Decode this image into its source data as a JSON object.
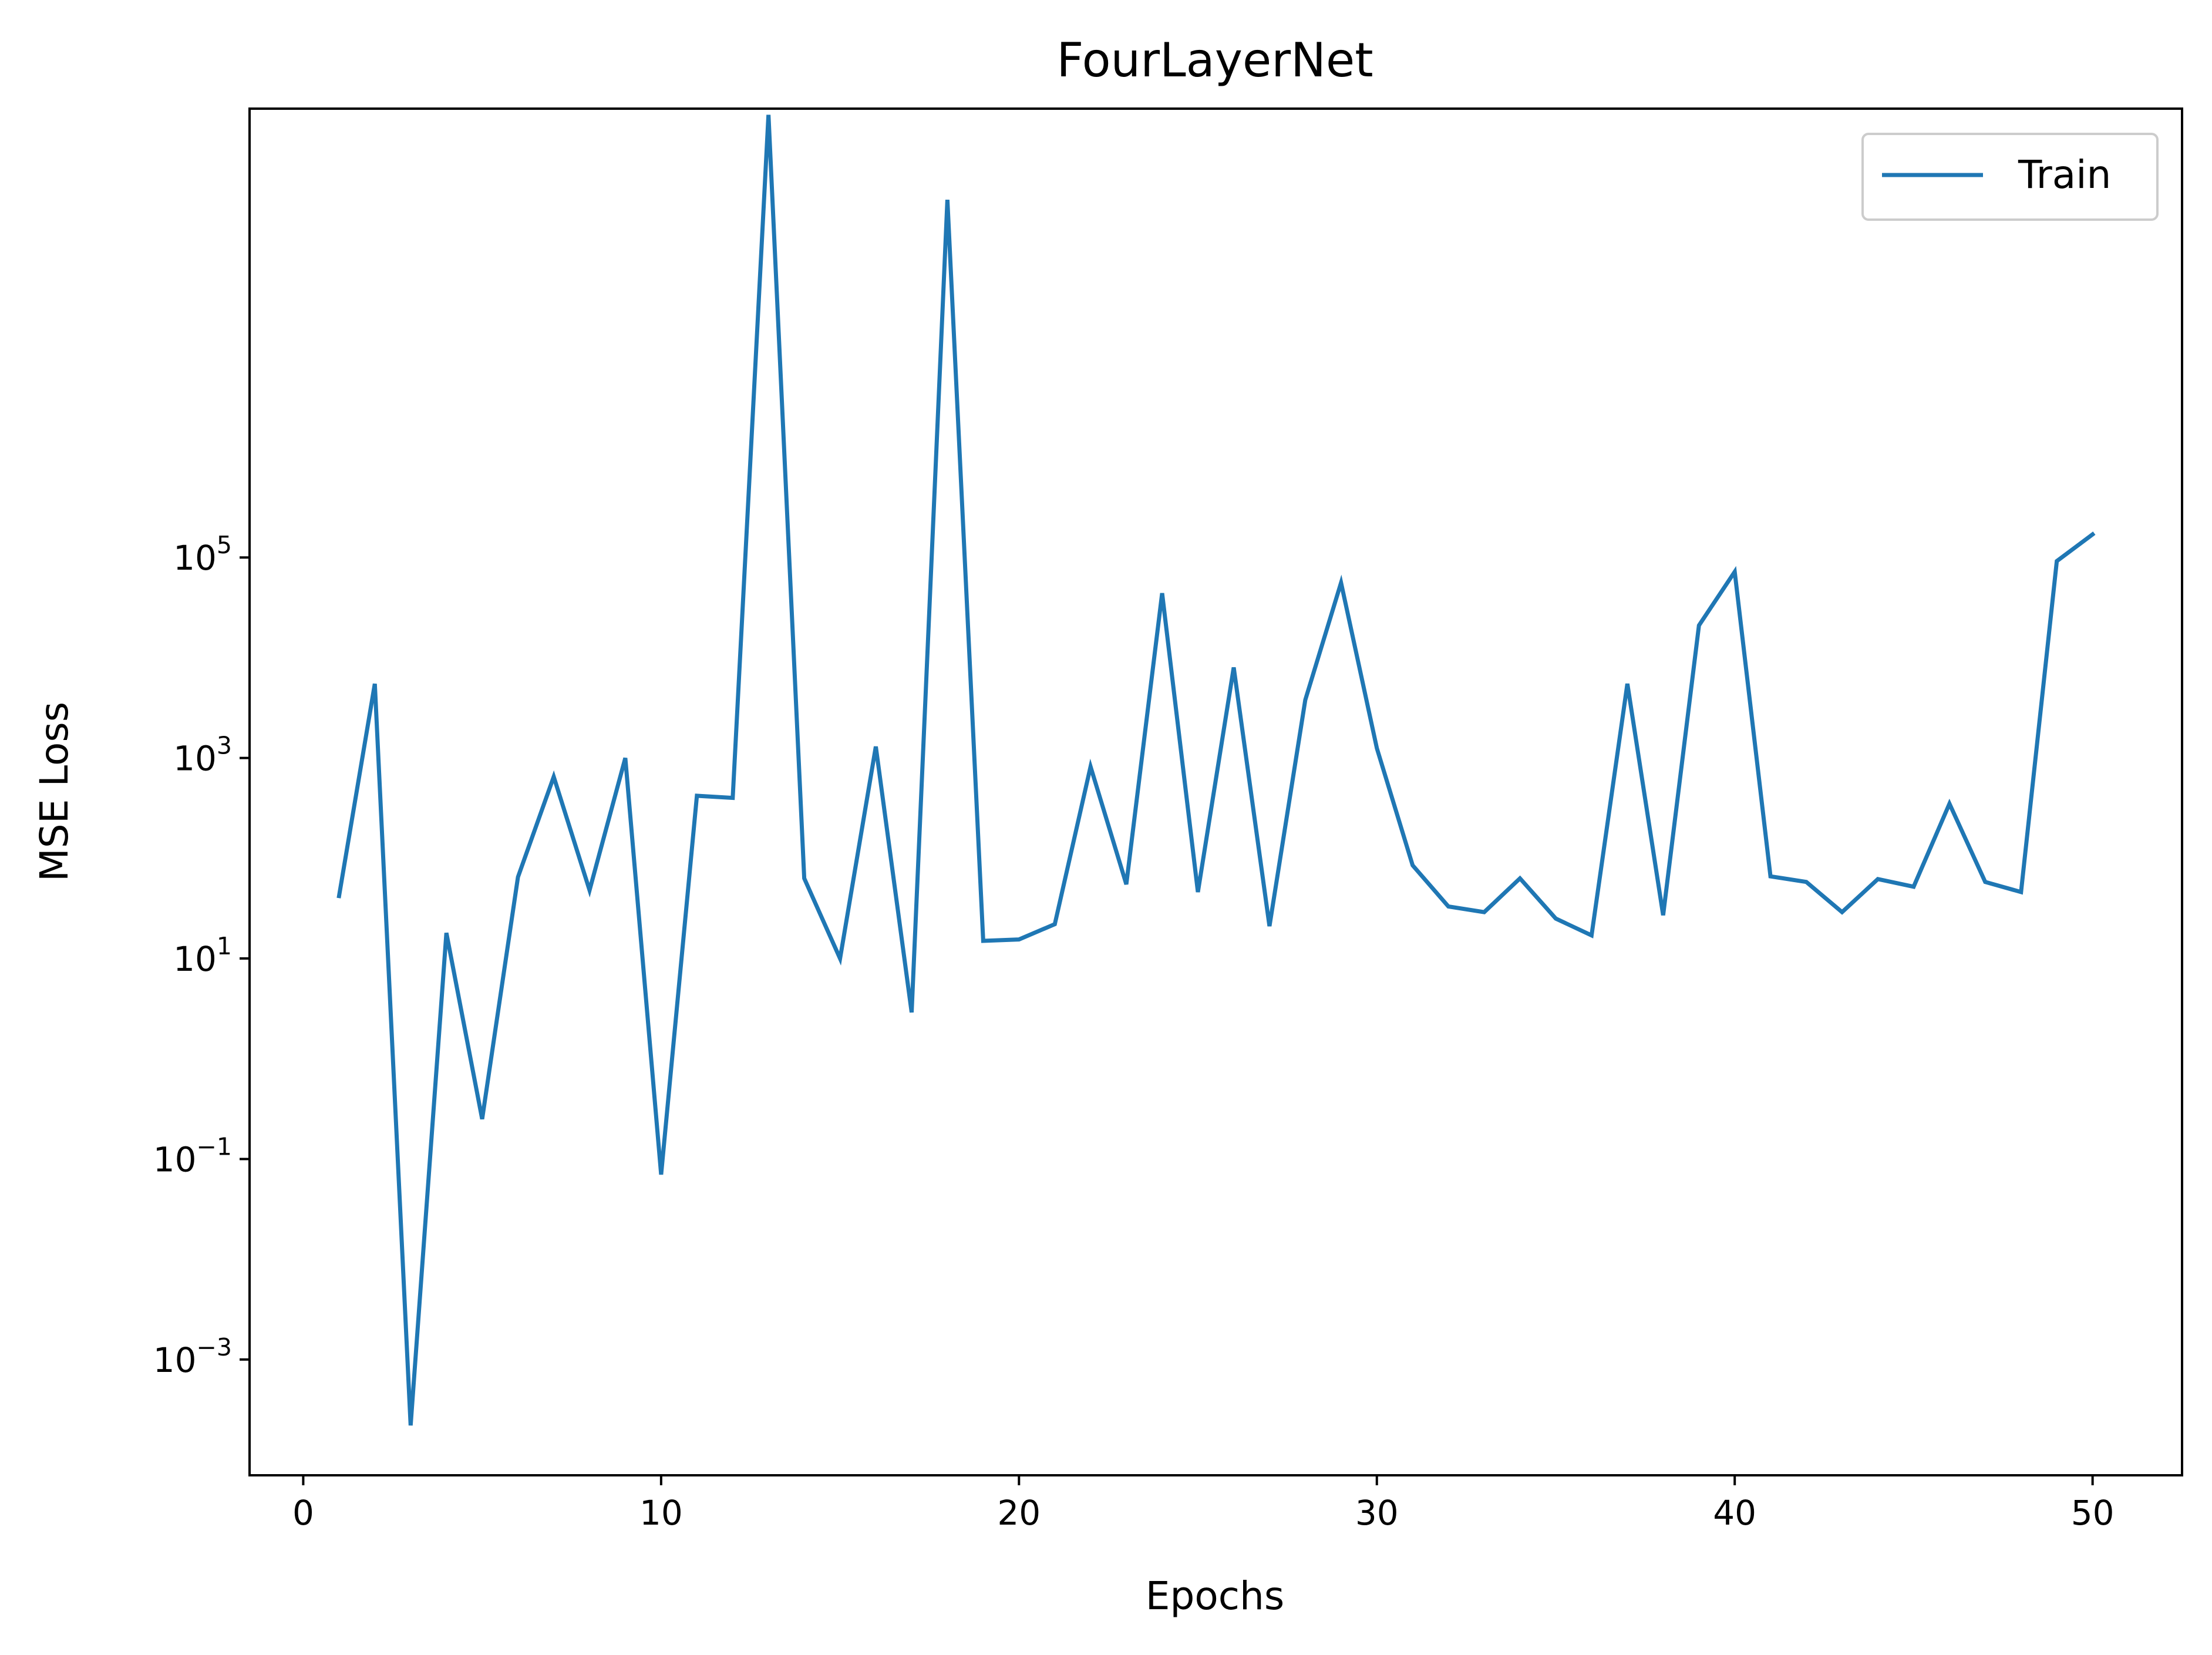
{
  "chart_data": {
    "type": "line",
    "title": "FourLayerNet",
    "xlabel": "Epochs",
    "ylabel": "MSE Loss",
    "xlim": [
      -1.5,
      52.5
    ],
    "ylim": [
      7e-05,
      3000000000
    ],
    "yscale": "log",
    "grid": false,
    "legend_position": "top-right",
    "x_ticks": [
      {
        "value": 0,
        "label": "0"
      },
      {
        "value": 10,
        "label": "10"
      },
      {
        "value": 20,
        "label": "20"
      },
      {
        "value": 30,
        "label": "30"
      },
      {
        "value": 40,
        "label": "40"
      },
      {
        "value": 50,
        "label": "50"
      }
    ],
    "y_ticks": [
      {
        "value": 0.001,
        "base": "10",
        "exp": "−3"
      },
      {
        "value": 0.1,
        "base": "10",
        "exp": "−1"
      },
      {
        "value": 10,
        "base": "10",
        "exp": "1"
      },
      {
        "value": 1000,
        "base": "10",
        "exp": "3"
      },
      {
        "value": 100000,
        "base": "10",
        "exp": "5"
      }
    ],
    "series": [
      {
        "name": "Train",
        "color": "#1f77b4",
        "x": [
          1,
          2,
          3,
          4,
          5,
          6,
          7,
          8,
          9,
          10,
          11,
          12,
          13,
          14,
          15,
          16,
          17,
          18,
          19,
          20,
          21,
          22,
          23,
          24,
          25,
          26,
          27,
          28,
          29,
          30,
          31,
          32,
          33,
          34,
          35,
          36,
          37,
          38,
          39,
          40,
          41,
          42,
          43,
          44,
          45,
          46,
          47,
          48,
          49,
          50
        ],
        "y": [
          42,
          5500,
          0.00022,
          18,
          0.25,
          65,
          650,
          48,
          1000,
          0.07,
          420,
          400,
          2600000000,
          63,
          10,
          1300,
          2.9,
          370000000,
          15,
          15.5,
          22,
          820,
          55,
          44000,
          46,
          8000,
          21,
          3800,
          56000,
          1250,
          85,
          33,
          29,
          63,
          25,
          17,
          5500,
          27,
          21000,
          72000,
          66,
          58,
          29,
          62,
          52,
          350,
          58,
          46,
          92000,
          170000
        ]
      }
    ]
  }
}
